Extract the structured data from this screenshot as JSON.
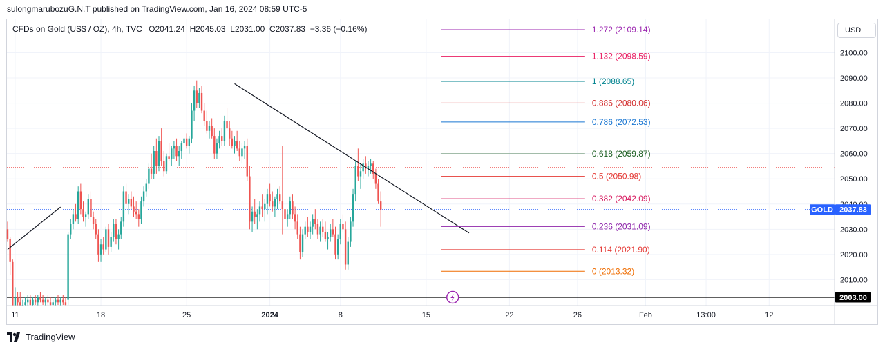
{
  "header": {
    "publisher_line": "sulongmarubozuG.N.T published on TradingView.com, Jan 16, 2024 08:59 UTC-5"
  },
  "legend": {
    "symbol": "CFDs on Gold (US$ / OZ), 4h, TVC",
    "open": "O2041.24",
    "high": "H2045.03",
    "low": "L2031.00",
    "close": "C2037.83",
    "change": "−3.36 (−0.16%)"
  },
  "currency_button": "USD",
  "footer": {
    "brand": "TradingView"
  },
  "colors": {
    "up": "#26a69a",
    "down": "#ef5350",
    "price_tag": "#2962ff",
    "level_tag": "#000000"
  },
  "chart_data": {
    "type": "candlestick",
    "y_axis": {
      "min": 2000,
      "max": 2113,
      "ticks": [
        "2100.00",
        "2090.00",
        "2080.00",
        "2070.00",
        "2060.00",
        "2050.00",
        "2040.00",
        "2030.00",
        "2020.00",
        "2010.00"
      ]
    },
    "x_axis": {
      "ticks": [
        {
          "label": "11",
          "bar": 3
        },
        {
          "label": "18",
          "bar": 37
        },
        {
          "label": "25",
          "bar": 71
        },
        {
          "label": "2024",
          "bar": 104
        },
        {
          "label": "8",
          "bar": 132
        },
        {
          "label": "15",
          "bar": 166
        },
        {
          "label": "22",
          "bar": 199
        },
        {
          "label": "26",
          "bar": 226
        },
        {
          "label": "Feb",
          "bar": 253
        },
        {
          "label": "13:00",
          "bar": 277
        },
        {
          "label": "12",
          "bar": 302
        }
      ]
    },
    "last_price": {
      "label": "GOLD",
      "value": "2037.83",
      "price": 2037.83
    },
    "horizontal_level": {
      "value": "2003.00",
      "price": 2003.0
    },
    "reference_line_price": 2054.5,
    "fibonacci": {
      "start_bar": 172,
      "end_bar": 229,
      "levels": [
        {
          "text": "1.272 (2109.14)",
          "price": 2109.14,
          "color": "#9c27b0"
        },
        {
          "text": "1.132 (2098.59)",
          "price": 2098.59,
          "color": "#e91e63"
        },
        {
          "text": "1 (2088.65)",
          "price": 2088.65,
          "color": "#00838f"
        },
        {
          "text": "0.886 (2080.06)",
          "price": 2080.06,
          "color": "#d32f2f"
        },
        {
          "text": "0.786 (2072.53)",
          "price": 2072.53,
          "color": "#1976d2"
        },
        {
          "text": "0.618 (2059.87)",
          "price": 2059.87,
          "color": "#1b5e20"
        },
        {
          "text": "0.5 (2050.98)",
          "price": 2050.98,
          "color": "#e53935"
        },
        {
          "text": "0.382 (2042.09)",
          "price": 2042.09,
          "color": "#d81b60"
        },
        {
          "text": "0.236 (2031.09)",
          "price": 2031.09,
          "color": "#8e24aa"
        },
        {
          "text": "0.114 (2021.90)",
          "price": 2021.9,
          "color": "#e53935"
        },
        {
          "text": "0 (2013.32)",
          "price": 2013.32,
          "color": "#ef6c00"
        }
      ]
    },
    "trendlines": [
      {
        "from": {
          "bar": 0,
          "price": 2022
        },
        "to": {
          "bar": 21,
          "price": 2038.8
        }
      },
      {
        "from": {
          "bar": 90,
          "price": 2087.7
        },
        "to": {
          "bar": 183,
          "price": 2028.5
        }
      }
    ],
    "candles": [
      [
        2030,
        2033,
        2025,
        2026
      ],
      [
        2026,
        2027,
        2012,
        2017
      ],
      [
        2017,
        2018,
        1996,
        1998
      ],
      [
        1998,
        2007,
        1993,
        2003
      ],
      [
        2003,
        2005,
        1999,
        2001
      ],
      [
        2001,
        2005,
        1997,
        1999
      ],
      [
        1999,
        2002,
        1998,
        2000
      ],
      [
        2000,
        2003,
        1998,
        2001
      ],
      [
        2001,
        2004,
        1999,
        2002
      ],
      [
        2002,
        2004,
        1999,
        2000
      ],
      [
        2000,
        2003,
        1998,
        2002
      ],
      [
        2002,
        2004,
        2000,
        2001
      ],
      [
        2001,
        2004,
        1999,
        2003
      ],
      [
        2003,
        2005,
        2001,
        2002
      ],
      [
        2002,
        2004,
        2000,
        2001
      ],
      [
        2001,
        2003,
        1999,
        2002
      ],
      [
        2002,
        2004,
        2000,
        2001
      ],
      [
        2001,
        2003,
        1998,
        2000
      ],
      [
        2000,
        2002,
        1998,
        2001
      ],
      [
        2001,
        2003,
        1999,
        2002
      ],
      [
        2002,
        2004,
        2000,
        2001
      ],
      [
        2001,
        2003,
        1999,
        2002
      ],
      [
        2002,
        2004,
        2000,
        2001
      ],
      [
        2001,
        2003,
        1999,
        2000
      ],
      [
        2002,
        2029,
        2000,
        2028
      ],
      [
        2028,
        2034,
        2026,
        2032
      ],
      [
        2032,
        2038,
        2030,
        2036
      ],
      [
        2036,
        2040,
        2033,
        2034
      ],
      [
        2034,
        2047,
        2032,
        2045
      ],
      [
        2045,
        2048,
        2036,
        2038
      ],
      [
        2038,
        2041,
        2033,
        2035
      ],
      [
        2035,
        2037,
        2031,
        2036
      ],
      [
        2036,
        2044,
        2034,
        2042
      ],
      [
        2042,
        2045,
        2033,
        2035
      ],
      [
        2035,
        2037,
        2030,
        2032
      ],
      [
        2032,
        2034,
        2026,
        2028
      ],
      [
        2028,
        2030,
        2017,
        2020
      ],
      [
        2020,
        2026,
        2017,
        2024
      ],
      [
        2024,
        2027,
        2020,
        2022
      ],
      [
        2022,
        2031,
        2021,
        2030
      ],
      [
        2030,
        2032,
        2020,
        2023
      ],
      [
        2023,
        2029,
        2021,
        2027
      ],
      [
        2027,
        2034,
        2025,
        2032
      ],
      [
        2032,
        2034,
        2024,
        2026
      ],
      [
        2026,
        2030,
        2022,
        2028
      ],
      [
        2028,
        2035,
        2026,
        2033
      ],
      [
        2033,
        2047,
        2031,
        2045
      ],
      [
        2045,
        2048,
        2038,
        2040
      ],
      [
        2040,
        2044,
        2036,
        2042
      ],
      [
        2042,
        2045,
        2038,
        2039
      ],
      [
        2039,
        2043,
        2035,
        2037
      ],
      [
        2037,
        2041,
        2034,
        2036
      ],
      [
        2036,
        2038,
        2031,
        2034
      ],
      [
        2034,
        2043,
        2032,
        2041
      ],
      [
        2041,
        2047,
        2039,
        2045
      ],
      [
        2045,
        2050,
        2043,
        2048
      ],
      [
        2048,
        2056,
        2046,
        2054
      ],
      [
        2054,
        2060,
        2050,
        2052
      ],
      [
        2052,
        2063,
        2050,
        2061
      ],
      [
        2061,
        2066,
        2052,
        2055
      ],
      [
        2055,
        2067,
        2053,
        2065
      ],
      [
        2065,
        2070,
        2055,
        2057
      ],
      [
        2057,
        2061,
        2051,
        2053
      ],
      [
        2053,
        2060,
        2052,
        2059
      ],
      [
        2059,
        2064,
        2057,
        2058
      ],
      [
        2058,
        2063,
        2055,
        2062
      ],
      [
        2062,
        2065,
        2058,
        2063
      ],
      [
        2063,
        2066,
        2057,
        2059
      ],
      [
        2059,
        2063,
        2055,
        2061
      ],
      [
        2061,
        2065,
        2058,
        2064
      ],
      [
        2064,
        2069,
        2062,
        2066
      ],
      [
        2066,
        2068,
        2062,
        2063
      ],
      [
        2063,
        2067,
        2060,
        2066
      ],
      [
        2066,
        2080,
        2064,
        2077
      ],
      [
        2077,
        2087,
        2073,
        2085
      ],
      [
        2085,
        2089,
        2078,
        2080
      ],
      [
        2080,
        2086,
        2078,
        2084
      ],
      [
        2084,
        2087,
        2076,
        2077
      ],
      [
        2077,
        2080,
        2071,
        2073
      ],
      [
        2073,
        2077,
        2068,
        2069
      ],
      [
        2069,
        2073,
        2066,
        2071
      ],
      [
        2071,
        2074,
        2066,
        2067
      ],
      [
        2067,
        2070,
        2058,
        2060
      ],
      [
        2060,
        2066,
        2058,
        2064
      ],
      [
        2064,
        2069,
        2062,
        2067
      ],
      [
        2067,
        2070,
        2063,
        2065
      ],
      [
        2065,
        2075,
        2063,
        2073
      ],
      [
        2073,
        2078,
        2069,
        2070
      ],
      [
        2070,
        2073,
        2063,
        2066
      ],
      [
        2066,
        2069,
        2062,
        2063
      ],
      [
        2063,
        2067,
        2060,
        2065
      ],
      [
        2065,
        2069,
        2061,
        2062
      ],
      [
        2062,
        2065,
        2057,
        2059
      ],
      [
        2059,
        2064,
        2056,
        2062
      ],
      [
        2062,
        2065,
        2058,
        2063
      ],
      [
        2063,
        2066,
        2049,
        2051
      ],
      [
        2051,
        2055,
        2030,
        2033
      ],
      [
        2033,
        2039,
        2029,
        2037
      ],
      [
        2037,
        2042,
        2032,
        2035
      ],
      [
        2035,
        2038,
        2030,
        2036
      ],
      [
        2036,
        2041,
        2033,
        2039
      ],
      [
        2039,
        2044,
        2035,
        2038
      ],
      [
        2038,
        2042,
        2033,
        2040
      ],
      [
        2040,
        2046,
        2036,
        2044
      ],
      [
        2044,
        2048,
        2039,
        2041
      ],
      [
        2041,
        2045,
        2037,
        2039
      ],
      [
        2039,
        2043,
        2035,
        2042
      ],
      [
        2042,
        2046,
        2038,
        2044
      ],
      [
        2044,
        2047,
        2040,
        2041
      ],
      [
        2041,
        2063,
        2028,
        2038
      ],
      [
        2038,
        2042,
        2029,
        2034
      ],
      [
        2034,
        2038,
        2031,
        2036
      ],
      [
        2036,
        2043,
        2034,
        2041
      ],
      [
        2041,
        2044,
        2034,
        2036
      ],
      [
        2036,
        2039,
        2030,
        2033
      ],
      [
        2033,
        2036,
        2026,
        2028
      ],
      [
        2028,
        2031,
        2018,
        2021
      ],
      [
        2021,
        2030,
        2019,
        2028
      ],
      [
        2028,
        2033,
        2026,
        2031
      ],
      [
        2031,
        2035,
        2027,
        2029
      ],
      [
        2029,
        2033,
        2026,
        2031
      ],
      [
        2031,
        2036,
        2028,
        2034
      ],
      [
        2034,
        2038,
        2030,
        2032
      ],
      [
        2032,
        2034,
        2026,
        2028
      ],
      [
        2028,
        2033,
        2025,
        2031
      ],
      [
        2031,
        2034,
        2027,
        2029
      ],
      [
        2029,
        2033,
        2025,
        2026
      ],
      [
        2026,
        2029,
        2022,
        2027
      ],
      [
        2027,
        2032,
        2025,
        2030
      ],
      [
        2030,
        2034,
        2027,
        2028
      ],
      [
        2028,
        2031,
        2018,
        2020
      ],
      [
        2020,
        2028,
        2018,
        2026
      ],
      [
        2026,
        2034,
        2024,
        2032
      ],
      [
        2032,
        2036,
        2029,
        2030
      ],
      [
        2030,
        2033,
        2014,
        2016
      ],
      [
        2016,
        2027,
        2014,
        2025
      ],
      [
        2025,
        2035,
        2023,
        2033
      ],
      [
        2033,
        2046,
        2031,
        2044
      ],
      [
        2044,
        2057,
        2041,
        2055
      ],
      [
        2055,
        2062,
        2049,
        2051
      ],
      [
        2051,
        2056,
        2046,
        2053
      ],
      [
        2053,
        2058,
        2050,
        2056
      ],
      [
        2056,
        2059,
        2052,
        2054
      ],
      [
        2054,
        2057,
        2051,
        2055
      ],
      [
        2055,
        2058,
        2052,
        2056
      ],
      [
        2056,
        2057,
        2050,
        2052
      ],
      [
        2052,
        2054,
        2046,
        2048
      ],
      [
        2048,
        2050,
        2040,
        2041
      ],
      [
        2041,
        2045,
        2031,
        2037.83
      ]
    ]
  }
}
